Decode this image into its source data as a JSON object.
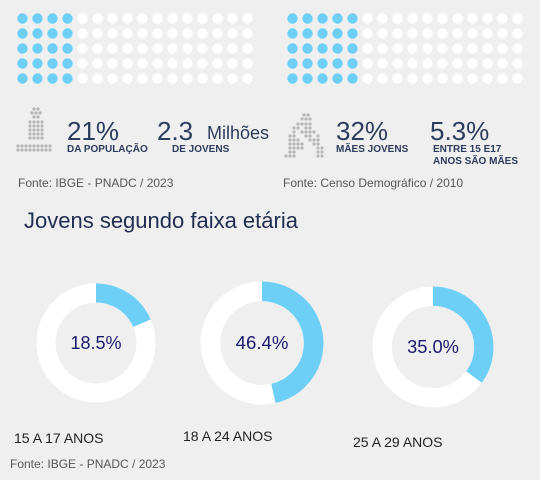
{
  "stats": {
    "left": {
      "pct_value": "21%",
      "pct_caption": "DA POPULAÇÃO",
      "num_value": "2.3",
      "num_unit": "Milhões",
      "num_caption": "DE JOVENS",
      "source": "Fonte: IBGE - PNADC / 2023"
    },
    "right": {
      "pct_value": "32%",
      "pct_caption": "MÃES JOVENS",
      "num_value": "5.3%",
      "num_caption_1": "ENTRE 15 E17",
      "num_caption_2": "ANOS SÃO MÃES",
      "source": "Fonte: Censo Demográfico / 2010"
    }
  },
  "colors": {
    "accent": "#6ecff6",
    "ring_bg": "#ffffff",
    "dot_bg": "#ffffff",
    "text_dark": "#2b3c5c",
    "pictogram": "#b5b5b5"
  },
  "icons": {
    "left": "person-dot-icon",
    "right": "mother-child-dot-icon"
  },
  "section_title": "Jovens segundo faixa etária",
  "bottom_source": "Fonte: IBGE - PNADC / 2023",
  "chart_data": [
    {
      "type": "waffle",
      "rows": 5,
      "cols": 16,
      "highlighted_cols": 4,
      "fraction": 0.21
    },
    {
      "type": "waffle",
      "rows": 5,
      "cols": 16,
      "highlighted_cols": 5,
      "fraction": 0.32
    },
    {
      "type": "pie",
      "categories": [
        "15 A 17 ANOS",
        "18 A 24 ANOS",
        "25 A 29 ANOS"
      ],
      "values": [
        18.5,
        46.4,
        35.0
      ],
      "labels": [
        "18.5%",
        "46.4%",
        "35.0%"
      ]
    }
  ]
}
